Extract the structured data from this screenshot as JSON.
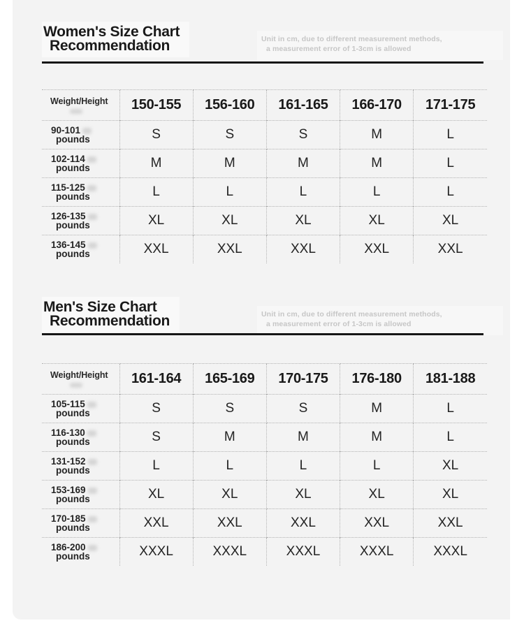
{
  "colors": {
    "page_bg": "#ffffff",
    "panel_bg": "#f3f3f3",
    "title_text": "#1a1a1a",
    "note_text": "#c6c6c6",
    "table_text": "#242424",
    "rule": "#161616",
    "dotted_border": "#b2b2b2"
  },
  "sections": [
    {
      "title_line1": "Women's Size Chart",
      "title_line2": "Recommendation",
      "note_line1": "Unit in cm, due to different measurement methods,",
      "note_line2": "a measurement error of 1-3cm is allowed",
      "table": {
        "corner_label": "Weight/Height",
        "columns": [
          "150-155",
          "156-160",
          "161-165",
          "166-170",
          "171-175"
        ],
        "rows": [
          {
            "weight": "90-101",
            "unit": "pounds",
            "sizes": [
              "S",
              "S",
              "S",
              "M",
              "L"
            ]
          },
          {
            "weight": "102-114",
            "unit": "pounds",
            "sizes": [
              "M",
              "M",
              "M",
              "M",
              "L"
            ]
          },
          {
            "weight": "115-125",
            "unit": "pounds",
            "sizes": [
              "L",
              "L",
              "L",
              "L",
              "L"
            ]
          },
          {
            "weight": "126-135",
            "unit": "pounds",
            "sizes": [
              "XL",
              "XL",
              "XL",
              "XL",
              "XL"
            ]
          },
          {
            "weight": "136-145",
            "unit": "pounds",
            "sizes": [
              "XXL",
              "XXL",
              "XXL",
              "XXL",
              "XXL"
            ]
          }
        ]
      }
    },
    {
      "title_line1": "Men's Size Chart",
      "title_line2": "Recommendation",
      "note_line1": "Unit in cm, due to different measurement methods,",
      "note_line2": "a measurement error of 1-3cm is allowed",
      "table": {
        "corner_label": "Weight/Height",
        "columns": [
          "161-164",
          "165-169",
          "170-175",
          "176-180",
          "181-188"
        ],
        "rows": [
          {
            "weight": "105-115",
            "unit": "pounds",
            "sizes": [
              "S",
              "S",
              "S",
              "M",
              "L"
            ]
          },
          {
            "weight": "116-130",
            "unit": "pounds",
            "sizes": [
              "S",
              "M",
              "M",
              "M",
              "L"
            ]
          },
          {
            "weight": "131-152",
            "unit": "pounds",
            "sizes": [
              "L",
              "L",
              "L",
              "L",
              "XL"
            ]
          },
          {
            "weight": "153-169",
            "unit": "pounds",
            "sizes": [
              "XL",
              "XL",
              "XL",
              "XL",
              "XL"
            ]
          },
          {
            "weight": "170-185",
            "unit": "pounds",
            "sizes": [
              "XXL",
              "XXL",
              "XXL",
              "XXL",
              "XXL"
            ]
          },
          {
            "weight": "186-200",
            "unit": "pounds",
            "sizes": [
              "XXXL",
              "XXXL",
              "XXXL",
              "XXXL",
              "XXXL"
            ]
          }
        ]
      }
    }
  ],
  "chart_data": [
    {
      "type": "table",
      "title": "Women's Size Chart Recommendation",
      "note": "Unit in cm, due to different measurement methods, a measurement error of 1-3cm is allowed",
      "columns": [
        "Weight/Height",
        "150-155",
        "156-160",
        "161-165",
        "166-170",
        "171-175"
      ],
      "rows": [
        [
          "90-101 pounds",
          "S",
          "S",
          "S",
          "M",
          "L"
        ],
        [
          "102-114 pounds",
          "M",
          "M",
          "M",
          "M",
          "L"
        ],
        [
          "115-125 pounds",
          "L",
          "L",
          "L",
          "L",
          "L"
        ],
        [
          "126-135 pounds",
          "XL",
          "XL",
          "XL",
          "XL",
          "XL"
        ],
        [
          "136-145 pounds",
          "XXL",
          "XXL",
          "XXL",
          "XXL",
          "XXL"
        ]
      ]
    },
    {
      "type": "table",
      "title": "Men's Size Chart Recommendation",
      "note": "Unit in cm, due to different measurement methods, a measurement error of 1-3cm is allowed",
      "columns": [
        "Weight/Height",
        "161-164",
        "165-169",
        "170-175",
        "176-180",
        "181-188"
      ],
      "rows": [
        [
          "105-115 pounds",
          "S",
          "S",
          "S",
          "M",
          "L"
        ],
        [
          "116-130 pounds",
          "S",
          "M",
          "M",
          "M",
          "L"
        ],
        [
          "131-152 pounds",
          "L",
          "L",
          "L",
          "L",
          "XL"
        ],
        [
          "153-169 pounds",
          "XL",
          "XL",
          "XL",
          "XL",
          "XL"
        ],
        [
          "170-185 pounds",
          "XXL",
          "XXL",
          "XXL",
          "XXL",
          "XXL"
        ],
        [
          "186-200 pounds",
          "XXXL",
          "XXXL",
          "XXXL",
          "XXXL",
          "XXXL"
        ]
      ]
    }
  ]
}
